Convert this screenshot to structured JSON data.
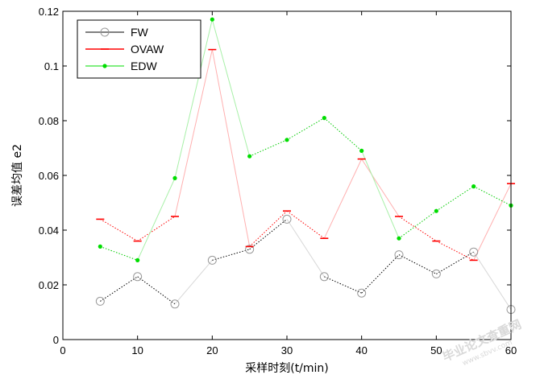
{
  "chart_data": {
    "type": "line",
    "title": "",
    "xlabel": "采样时刻(t/min)",
    "ylabel": "误差均值 e2",
    "xlim": [
      0,
      60
    ],
    "ylim": [
      0,
      0.12
    ],
    "xticks": [
      0,
      10,
      20,
      30,
      40,
      50,
      60
    ],
    "yticks": [
      0,
      0.02,
      0.04,
      0.06,
      0.08,
      0.1,
      0.12
    ],
    "xtick_labels": [
      "0",
      "10",
      "20",
      "30",
      "40",
      "50",
      "60"
    ],
    "ytick_labels": [
      "0",
      "0.02",
      "0.04",
      "0.06",
      "0.08",
      "0.1",
      "0.12"
    ],
    "grid": false,
    "legend_position": "top-left",
    "x": [
      5,
      10,
      15,
      20,
      25,
      30,
      35,
      40,
      45,
      50,
      55,
      60
    ],
    "series": [
      {
        "name": "FW",
        "color": "#000000",
        "marker": "circle",
        "values": [
          0.014,
          0.023,
          0.013,
          0.029,
          0.033,
          0.044,
          0.023,
          0.017,
          0.031,
          0.024,
          0.032,
          0.011
        ]
      },
      {
        "name": "OVAW",
        "color": "#ff0000",
        "marker": "dash",
        "values": [
          0.044,
          0.036,
          0.045,
          0.106,
          0.034,
          0.047,
          0.037,
          0.066,
          0.045,
          0.036,
          0.029,
          0.057
        ]
      },
      {
        "name": "EDW",
        "color": "#00dd00",
        "marker": "dot",
        "values": [
          0.034,
          0.029,
          0.059,
          0.117,
          0.067,
          0.073,
          0.081,
          0.069,
          0.037,
          0.047,
          0.056,
          0.049
        ]
      }
    ]
  },
  "watermark": {
    "line1": "毕业论文查重网",
    "line2": "www.sbvv.com"
  }
}
